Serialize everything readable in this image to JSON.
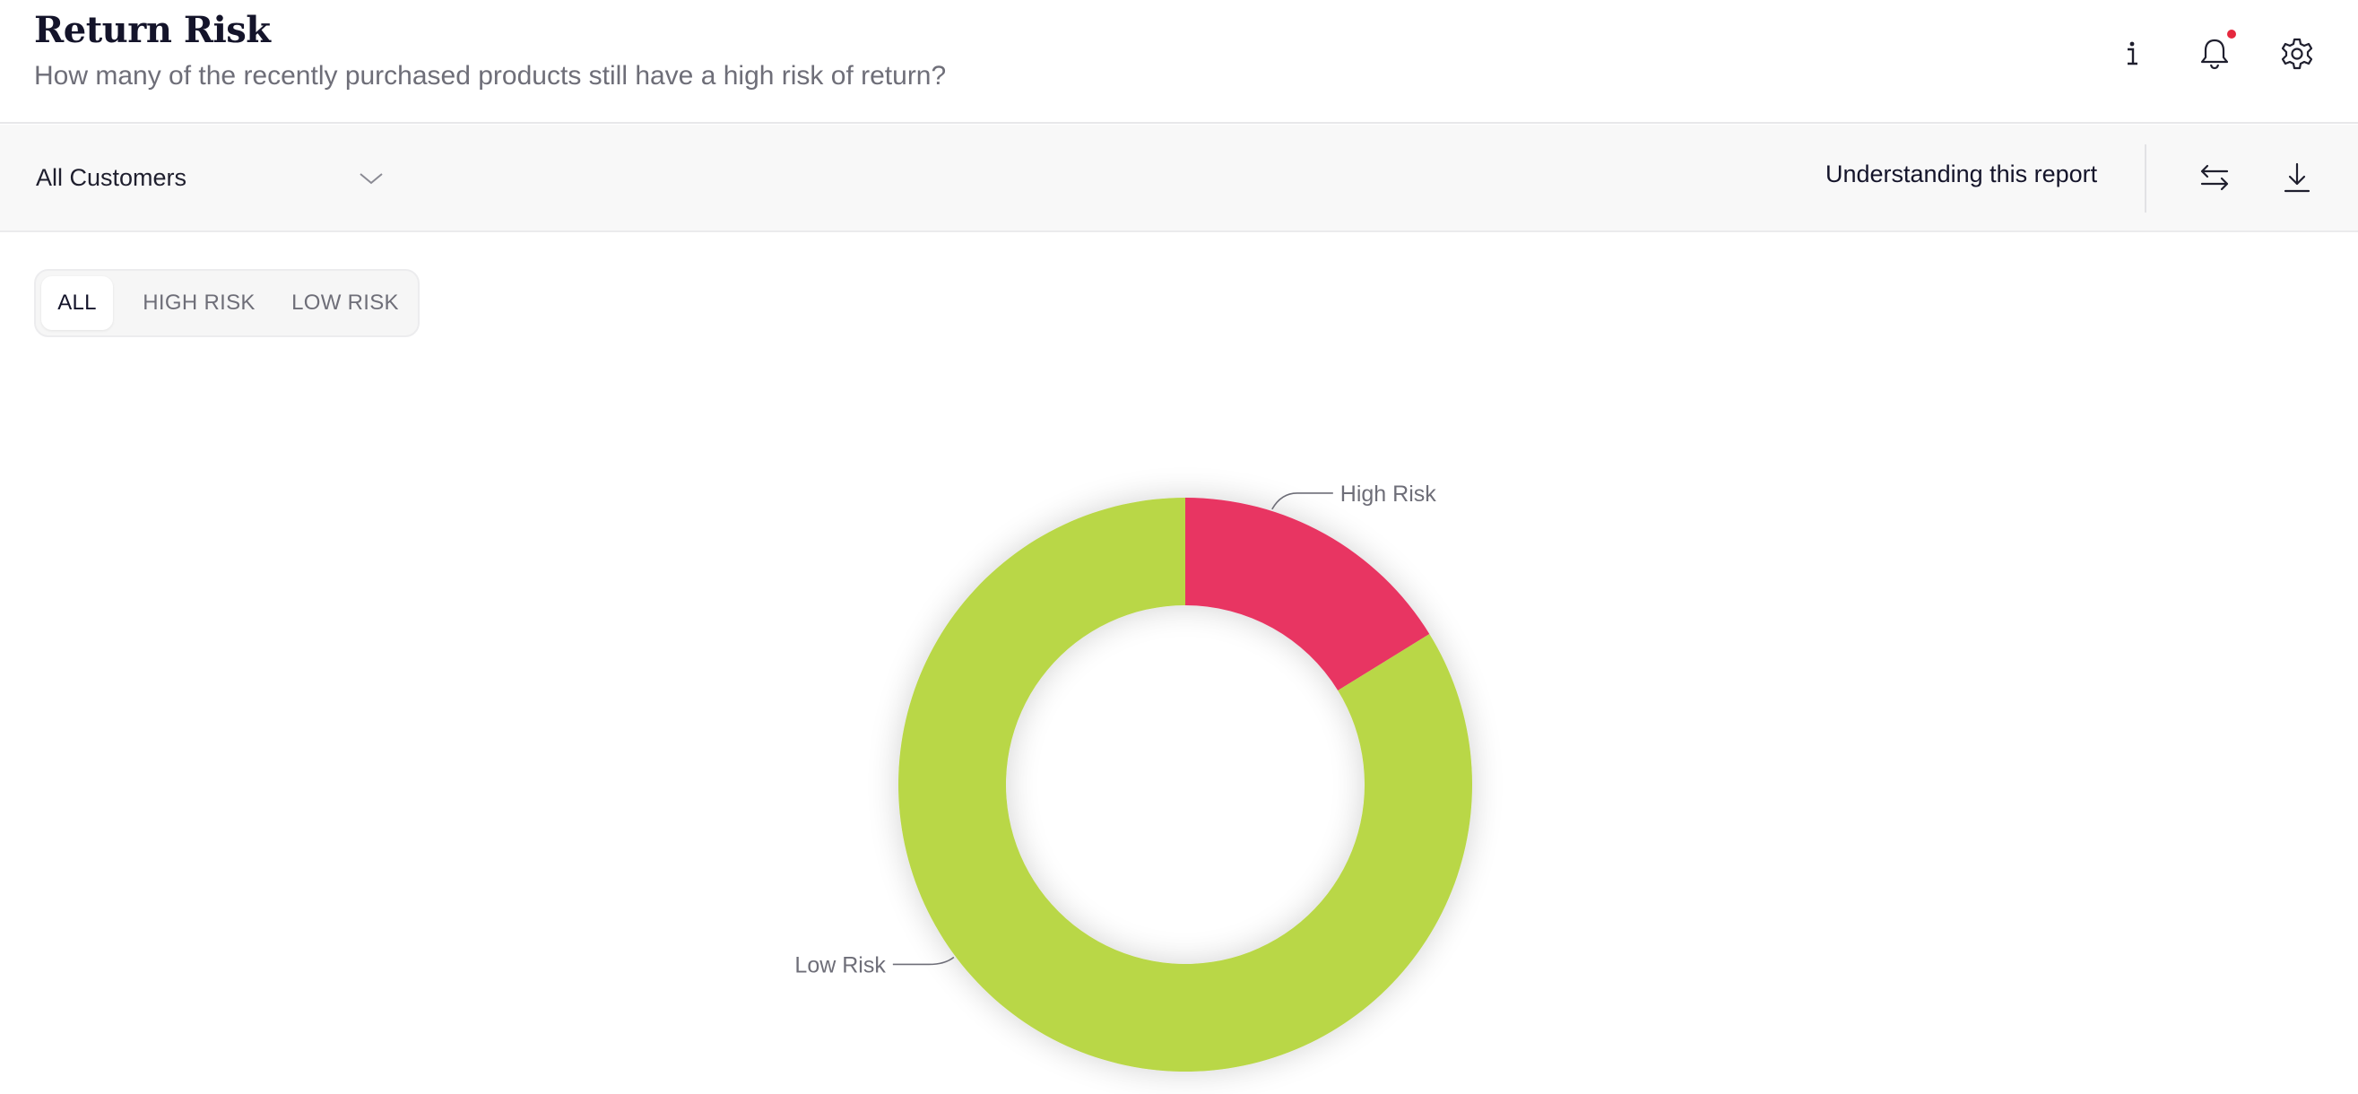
{
  "header": {
    "title": "Return Risk",
    "subtitle": "How many of the recently purchased products still have a high risk of return?",
    "icons": [
      "info-icon",
      "bell-icon",
      "gear-icon"
    ],
    "has_notification": true
  },
  "toolbar": {
    "customer_filter": "All Customers",
    "understanding_link": "Understanding this report",
    "icons": [
      "swap-icon",
      "download-icon"
    ]
  },
  "tabs": [
    {
      "label": "ALL",
      "active": true
    },
    {
      "label": "HIGH RISK",
      "active": false
    },
    {
      "label": "LOW RISK",
      "active": false
    }
  ],
  "colors": {
    "high_risk": "#e83462",
    "low_risk": "#b9d746",
    "notification": "#e5283e"
  },
  "chart_data": {
    "type": "pie",
    "donut": true,
    "title": "",
    "slices": [
      {
        "label": "High Risk",
        "value": 16.2,
        "color": "#e83462"
      },
      {
        "label": "Low Risk",
        "value": 83.8,
        "color": "#b9d746"
      }
    ]
  }
}
